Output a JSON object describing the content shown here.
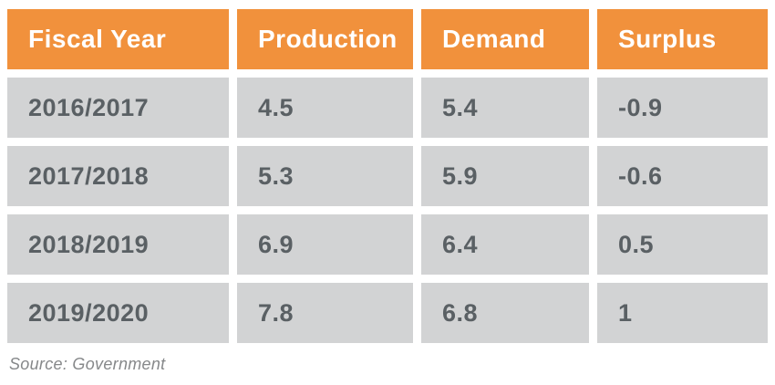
{
  "table": {
    "headers": [
      "Fiscal Year",
      "Production",
      "Demand",
      "Surplus"
    ],
    "rows": [
      {
        "cells": [
          "2016/2017",
          "4.5",
          "5.4",
          "-0.9"
        ]
      },
      {
        "cells": [
          "2017/2018",
          "5.3",
          "5.9",
          "-0.6"
        ]
      },
      {
        "cells": [
          "2018/2019",
          "6.9",
          "6.4",
          "0.5"
        ]
      },
      {
        "cells": [
          "2019/2020",
          "7.8",
          "6.8",
          "1"
        ]
      }
    ]
  },
  "source": {
    "label": "Source: Government"
  },
  "colors": {
    "header_bg": "#F1913C",
    "header_text": "#FFFFFF",
    "row_bg": "#D2D3D4",
    "row_text": "#5A6064",
    "source_text": "#86888A",
    "background": "#FFFFFF"
  },
  "chart_data": {
    "type": "table",
    "title": "",
    "columns": [
      "Fiscal Year",
      "Production",
      "Demand",
      "Surplus"
    ],
    "rows": [
      [
        "2016/2017",
        4.5,
        5.4,
        -0.9
      ],
      [
        "2017/2018",
        5.3,
        5.9,
        -0.6
      ],
      [
        "2018/2019",
        6.9,
        6.4,
        0.5
      ],
      [
        "2019/2020",
        7.8,
        6.8,
        1
      ]
    ],
    "source": "Source: Government"
  }
}
